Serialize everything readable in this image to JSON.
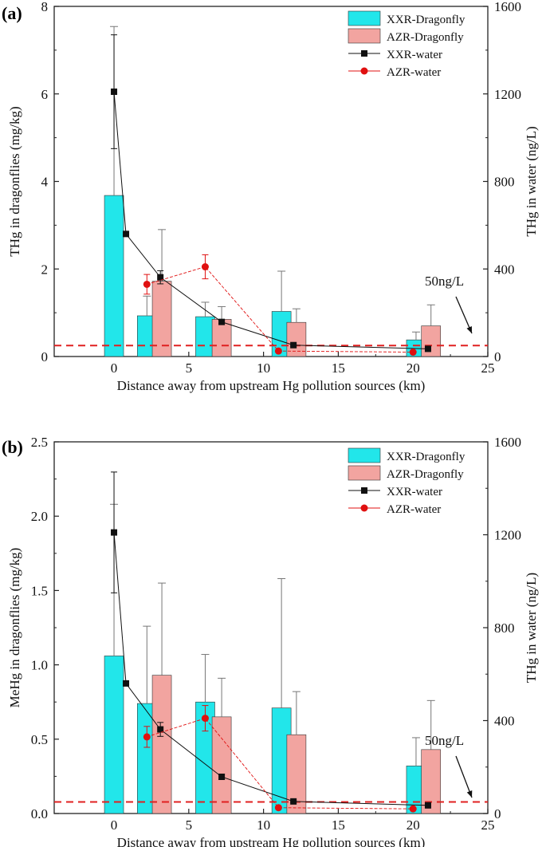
{
  "chart_data": [
    {
      "type": "bar+line",
      "panel_label": "(a)",
      "xlabel": "Distance away from upstream Hg pollution sources  (km)",
      "ylabel_left": "THg in dragonflies   (mg/kg)",
      "ylabel_right": "THg in water   (ng/L)",
      "xlim": [
        -4,
        25
      ],
      "xticks": [
        "0",
        "5",
        "10",
        "15",
        "20",
        "25"
      ],
      "xtick_values": [
        0,
        5,
        10,
        15,
        20,
        25
      ],
      "ylim_left": [
        0,
        8
      ],
      "yticks_left": [
        "0",
        "2",
        "4",
        "6",
        "8"
      ],
      "ytick_values_left": [
        0,
        2,
        4,
        6,
        8
      ],
      "ylim_right": [
        0,
        1600
      ],
      "yticks_right": [
        "0",
        "400",
        "800",
        "1200",
        "1600"
      ],
      "ytick_values_right": [
        0,
        400,
        800,
        1200,
        1600
      ],
      "reference_line": {
        "value": 50,
        "label": "50ng/L",
        "color": "#e02020"
      },
      "legend": [
        "XXR-Dragonfly",
        "AZR-Dragonfly",
        "XXR-water",
        "AZR-water"
      ],
      "colors": {
        "xxr_bar": "#22e6ea",
        "azr_bar": "#f2a4a0",
        "xxr_line": "#111111",
        "azr_line": "#e01010"
      },
      "bars": [
        {
          "series": "XXR-Dragonfly",
          "x": [
            0,
            2.2,
            6.1,
            11.2,
            20.2
          ],
          "values": [
            3.68,
            0.93,
            0.91,
            1.03,
            0.38
          ],
          "err": [
            3.86,
            0.45,
            0.33,
            0.92,
            0.18
          ]
        },
        {
          "series": "AZR-Dragonfly",
          "x": [
            3.2,
            7.2,
            12.2,
            21.2
          ],
          "values": [
            1.72,
            0.85,
            0.78,
            0.7
          ],
          "err": [
            1.18,
            0.29,
            0.31,
            0.48
          ]
        }
      ],
      "lines": [
        {
          "series": "XXR-water",
          "x": [
            0,
            0.8,
            3.1,
            7.2,
            12.0,
            21.0
          ],
          "values": [
            1210,
            560,
            362,
            158,
            52,
            35
          ],
          "err": [
            260,
            0,
            30,
            8,
            4,
            3
          ]
        },
        {
          "series": "AZR-water",
          "x": [
            2.2,
            6.1,
            11.0,
            20.0
          ],
          "values": [
            330,
            410,
            25,
            20
          ],
          "err": [
            45,
            55,
            3,
            3
          ]
        }
      ]
    },
    {
      "type": "bar+line",
      "panel_label": "(b)",
      "xlabel": "Distance away from upstream Hg pollution sources  (km)",
      "ylabel_left": "MeHg in dragonflies   (mg/kg)",
      "ylabel_right": "THg in water   (ng/L)",
      "xlim": [
        -4,
        25
      ],
      "xticks": [
        "0",
        "5",
        "10",
        "15",
        "20",
        "25"
      ],
      "xtick_values": [
        0,
        5,
        10,
        15,
        20,
        25
      ],
      "ylim_left": [
        0,
        2.5
      ],
      "yticks_left": [
        "0.0",
        "0.5",
        "1.0",
        "1.5",
        "2.0",
        "2.5"
      ],
      "ytick_values_left": [
        0,
        0.5,
        1.0,
        1.5,
        2.0,
        2.5
      ],
      "ylim_right": [
        0,
        1600
      ],
      "yticks_right": [
        "0",
        "400",
        "800",
        "1200",
        "1600"
      ],
      "ytick_values_right": [
        0,
        400,
        800,
        1200,
        1600
      ],
      "reference_line": {
        "value": 50,
        "label": "50ng/L",
        "color": "#e02020"
      },
      "legend": [
        "XXR-Dragonfly",
        "AZR-Dragonfly",
        "XXR-water",
        "AZR-water"
      ],
      "colors": {
        "xxr_bar": "#22e6ea",
        "azr_bar": "#f2a4a0",
        "xxr_line": "#111111",
        "azr_line": "#e01010"
      },
      "bars": [
        {
          "series": "XXR-Dragonfly",
          "x": [
            0,
            2.2,
            6.1,
            11.2,
            20.2
          ],
          "values": [
            1.06,
            0.74,
            0.75,
            0.71,
            0.32
          ],
          "err": [
            1.02,
            0.52,
            0.32,
            0.87,
            0.19
          ]
        },
        {
          "series": "AZR-Dragonfly",
          "x": [
            3.2,
            7.2,
            12.2,
            21.2
          ],
          "values": [
            0.93,
            0.65,
            0.53,
            0.43
          ],
          "err": [
            0.62,
            0.26,
            0.29,
            0.33
          ]
        }
      ],
      "lines": [
        {
          "series": "XXR-water",
          "x": [
            0,
            0.8,
            3.1,
            7.2,
            12.0,
            21.0
          ],
          "values": [
            1210,
            560,
            362,
            158,
            52,
            35
          ],
          "err": [
            260,
            0,
            30,
            12,
            4,
            3
          ]
        },
        {
          "series": "AZR-water",
          "x": [
            2.2,
            6.1,
            11.0,
            20.0
          ],
          "values": [
            330,
            410,
            25,
            20
          ],
          "err": [
            45,
            55,
            3,
            3
          ]
        }
      ]
    }
  ]
}
